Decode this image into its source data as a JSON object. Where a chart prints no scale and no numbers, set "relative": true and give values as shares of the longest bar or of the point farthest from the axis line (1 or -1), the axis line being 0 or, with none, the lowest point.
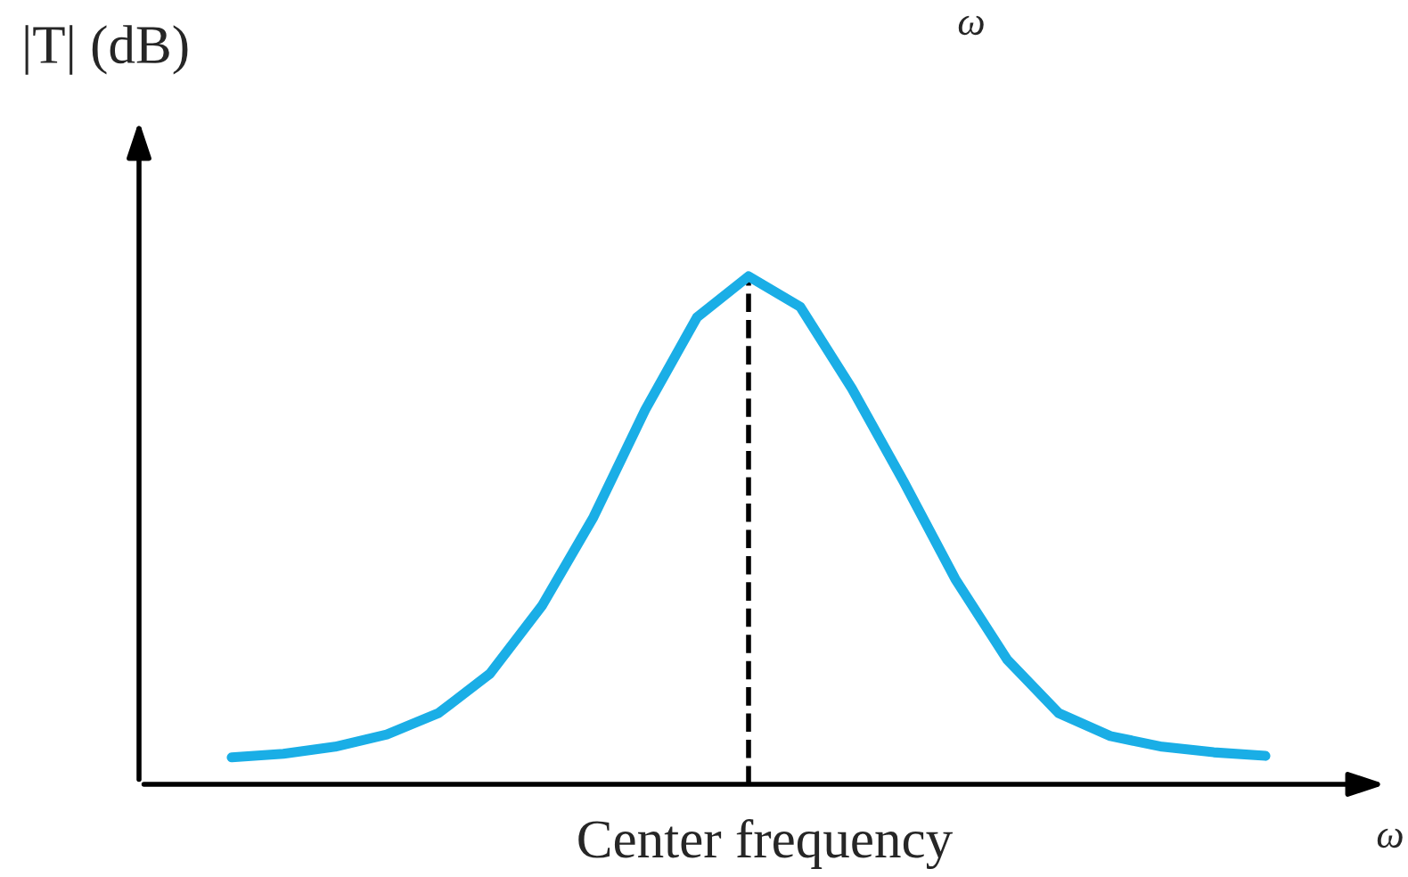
{
  "chart_data": {
    "type": "line",
    "relative": true,
    "ylabel": "|T| (dB)",
    "xlabel": "Center frequency",
    "categories": [
      null,
      null,
      null,
      null,
      null,
      null,
      null,
      null,
      null,
      null,
      null,
      null,
      null,
      null,
      null,
      null,
      null,
      null,
      null,
      null,
      null
    ],
    "series": [
      {
        "color": "#1aaee6",
        "values": [
          0.053,
          0.06,
          0.074,
          0.098,
          0.14,
          0.218,
          0.351,
          0.526,
          0.737,
          0.919,
          1,
          0.94,
          0.779,
          0.596,
          0.404,
          0.246,
          0.14,
          0.095,
          0.074,
          0.063,
          0.056
        ]
      }
    ],
    "annotations": [
      "ω",
      "ω"
    ],
    "grid": false,
    "legend": false,
    "marker": "none",
    "line_style": "solid"
  }
}
